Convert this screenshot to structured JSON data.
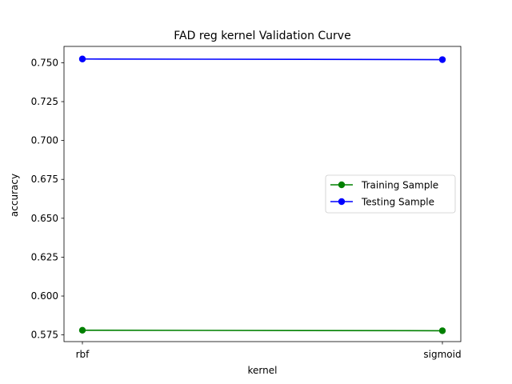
{
  "chart_data": {
    "type": "line",
    "title": "FAD reg kernel Validation Curve",
    "xlabel": "kernel",
    "ylabel": "accuracy",
    "categories": [
      "rbf",
      "sigmoid"
    ],
    "ylim": [
      0.5707,
      0.7605
    ],
    "yticks": [
      "0.575",
      "0.600",
      "0.625",
      "0.650",
      "0.675",
      "0.700",
      "0.725",
      "0.750"
    ],
    "grid": false,
    "legend_position": "center-right",
    "series": [
      {
        "name": "Training Sample",
        "color": "#008000",
        "marker": "circle",
        "values": [
          0.578,
          0.5777
        ]
      },
      {
        "name": "Testing Sample",
        "color": "#0000ff",
        "marker": "circle",
        "values": [
          0.7524,
          0.752
        ]
      }
    ]
  }
}
